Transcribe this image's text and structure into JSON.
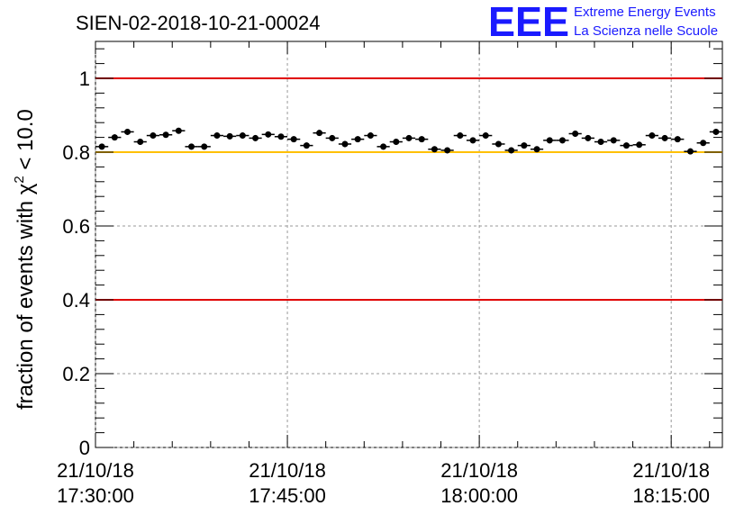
{
  "chart_data": {
    "type": "scatter",
    "title": "SIEN-02-2018-10-21-00024",
    "ylabel_prefix": "fraction of events with ",
    "ylabel_symbol": "χ",
    "ylabel_sup": "2",
    "ylabel_suffix": " < 10.0",
    "xlabel": "",
    "ylim": [
      0,
      1.1
    ],
    "yticks": [
      0,
      0.2,
      0.4,
      0.6,
      0.8,
      1
    ],
    "ytick_labels": [
      "0",
      "0.2",
      "0.4",
      "0.6",
      "0.8",
      "1"
    ],
    "xlim_minutes": [
      0,
      49
    ],
    "xticks_minutes": [
      0,
      15,
      30,
      45
    ],
    "xtick_dates": [
      "21/10/18",
      "21/10/18",
      "21/10/18",
      "21/10/18"
    ],
    "xtick_times": [
      "17:30:00",
      "17:45:00",
      "18:00:00",
      "18:15:00"
    ],
    "reference_lines": [
      {
        "name": "upper-limit",
        "y": 1.0,
        "color": "#e00000"
      },
      {
        "name": "target-level",
        "y": 0.8,
        "color": "#ffc000"
      },
      {
        "name": "lower-limit",
        "y": 0.4,
        "color": "#e00000"
      }
    ],
    "series": [
      {
        "name": "fraction",
        "x_minutes": [
          0.5,
          1.5,
          2.5,
          3.5,
          4.5,
          5.5,
          6.5,
          7.5,
          8.5,
          9.5,
          10.5,
          11.5,
          12.5,
          13.5,
          14.5,
          15.5,
          16.5,
          17.5,
          18.5,
          19.5,
          20.5,
          21.5,
          22.5,
          23.5,
          24.5,
          25.5,
          26.5,
          27.5,
          28.5,
          29.5,
          30.5,
          31.5,
          32.5,
          33.5,
          34.5,
          35.5,
          36.5,
          37.5,
          38.5,
          39.5,
          40.5,
          41.5,
          42.5,
          43.5,
          44.5,
          45.5,
          46.5,
          47.5,
          48.5
        ],
        "values": [
          0.815,
          0.84,
          0.855,
          0.828,
          0.845,
          0.847,
          0.858,
          0.815,
          0.815,
          0.845,
          0.843,
          0.845,
          0.838,
          0.848,
          0.842,
          0.835,
          0.818,
          0.852,
          0.838,
          0.822,
          0.835,
          0.845,
          0.815,
          0.828,
          0.838,
          0.835,
          0.808,
          0.805,
          0.845,
          0.832,
          0.845,
          0.822,
          0.805,
          0.818,
          0.808,
          0.832,
          0.832,
          0.85,
          0.838,
          0.828,
          0.832,
          0.818,
          0.82,
          0.845,
          0.838,
          0.835,
          0.802,
          0.825,
          0.855
        ],
        "error": 0.008,
        "color": "#000000"
      }
    ]
  },
  "logo": {
    "letters": "EEE",
    "line1": "Extreme Energy Events",
    "line2": "La Scienza nelle Scuole",
    "color": "#1a1aff"
  }
}
